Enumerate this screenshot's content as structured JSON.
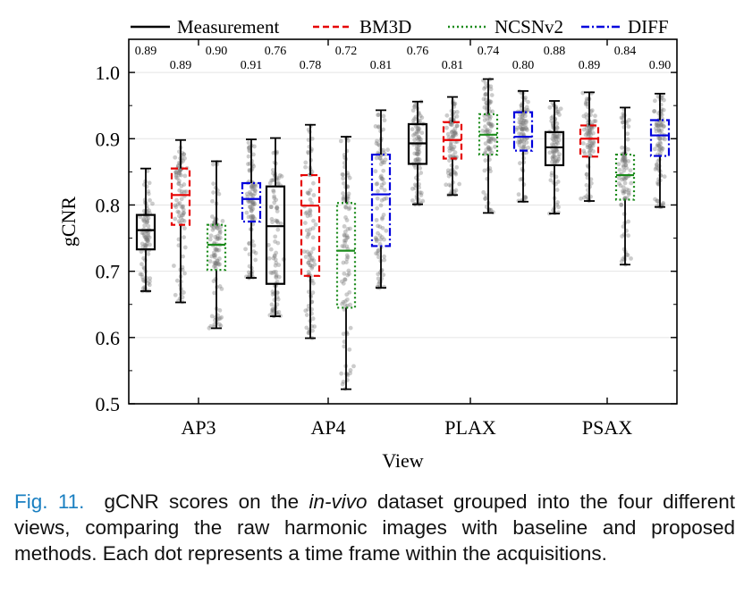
{
  "chart_data": {
    "type": "box",
    "xlabel": "View",
    "ylabel": "gCNR",
    "ylim": [
      0.5,
      1.05
    ],
    "yticks": [
      "0.5",
      "0.6",
      "0.7",
      "0.8",
      "0.9",
      "1.0"
    ],
    "ytick_values": [
      0.5,
      0.6,
      0.7,
      0.8,
      0.9,
      1.0
    ],
    "categories": [
      "AP3",
      "AP4",
      "PLAX",
      "PSAX"
    ],
    "grid": "horizontal",
    "legend_position": "top",
    "series": [
      {
        "name": "Measurement",
        "color": "#000000",
        "linestyle": "solid",
        "boxes": [
          {
            "whislo": 0.67,
            "q1": 0.733,
            "med": 0.762,
            "q3": 0.785,
            "whishi": 0.855,
            "label": "0.89"
          },
          {
            "whislo": 0.632,
            "q1": 0.681,
            "med": 0.768,
            "q3": 0.828,
            "whishi": 0.901,
            "label": "0.76"
          },
          {
            "whislo": 0.801,
            "q1": 0.862,
            "med": 0.893,
            "q3": 0.922,
            "whishi": 0.956,
            "label": "0.76"
          },
          {
            "whislo": 0.787,
            "q1": 0.86,
            "med": 0.887,
            "q3": 0.91,
            "whishi": 0.957,
            "label": "0.88"
          }
        ]
      },
      {
        "name": "BM3D",
        "color": "#e60000",
        "linestyle": "dashed",
        "boxes": [
          {
            "whislo": 0.653,
            "q1": 0.77,
            "med": 0.815,
            "q3": 0.855,
            "whishi": 0.898,
            "label": "0.89"
          },
          {
            "whislo": 0.599,
            "q1": 0.693,
            "med": 0.799,
            "q3": 0.845,
            "whishi": 0.921,
            "label": "0.78"
          },
          {
            "whislo": 0.815,
            "q1": 0.87,
            "med": 0.898,
            "q3": 0.925,
            "whishi": 0.963,
            "label": "0.81"
          },
          {
            "whislo": 0.806,
            "q1": 0.873,
            "med": 0.9,
            "q3": 0.92,
            "whishi": 0.97,
            "label": "0.89"
          }
        ]
      },
      {
        "name": "NCSNv2",
        "color": "#1a8a1a",
        "linestyle": "dotted",
        "boxes": [
          {
            "whislo": 0.614,
            "q1": 0.702,
            "med": 0.74,
            "q3": 0.77,
            "whishi": 0.866,
            "label": "0.90"
          },
          {
            "whislo": 0.522,
            "q1": 0.645,
            "med": 0.731,
            "q3": 0.803,
            "whishi": 0.903,
            "label": "0.72"
          },
          {
            "whislo": 0.788,
            "q1": 0.876,
            "med": 0.906,
            "q3": 0.937,
            "whishi": 0.99,
            "label": "0.74"
          },
          {
            "whislo": 0.71,
            "q1": 0.808,
            "med": 0.845,
            "q3": 0.876,
            "whishi": 0.947,
            "label": "0.84"
          }
        ]
      },
      {
        "name": "DIFF",
        "color": "#0000dd",
        "linestyle": "dashdot",
        "boxes": [
          {
            "whislo": 0.69,
            "q1": 0.775,
            "med": 0.809,
            "q3": 0.833,
            "whishi": 0.899,
            "label": "0.91"
          },
          {
            "whislo": 0.675,
            "q1": 0.738,
            "med": 0.816,
            "q3": 0.876,
            "whishi": 0.943,
            "label": "0.81"
          },
          {
            "whislo": 0.805,
            "q1": 0.882,
            "med": 0.903,
            "q3": 0.94,
            "whishi": 0.972,
            "label": "0.80"
          },
          {
            "whislo": 0.797,
            "q1": 0.874,
            "med": 0.905,
            "q3": 0.928,
            "whishi": 0.968,
            "label": "0.90"
          }
        ]
      }
    ]
  },
  "caption": {
    "label": "Fig. 11.",
    "text_before": "gCNR scores on the ",
    "text_italic": "in-vivo",
    "text_after": " dataset grouped into the four different views, comparing the raw harmonic images with baseline and proposed methods. Each dot represents a time frame within the acquisitions."
  }
}
